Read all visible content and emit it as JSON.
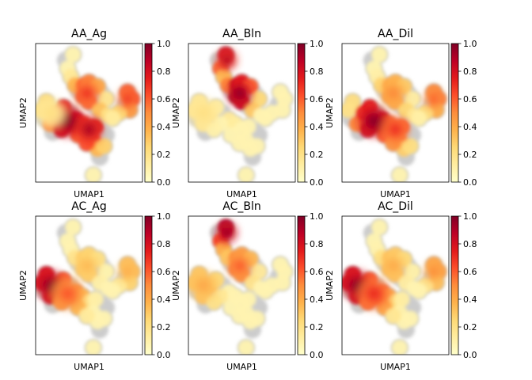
{
  "chart_data": {
    "type": "scatter",
    "colormap": "YlOrRd",
    "background_points_color": "#cccccc",
    "colorbar_ticks": [
      "0.0",
      "0.2",
      "0.4",
      "0.6",
      "0.8",
      "1.0"
    ],
    "colorbar_range": [
      0,
      1
    ],
    "panels": [
      {
        "title": "AA_Ag",
        "xlabel": "UMAP1",
        "ylabel": "UMAP2",
        "hotspots": [
          {
            "region": "left-center cluster",
            "value": 1.0
          },
          {
            "region": "lower-center cluster",
            "value": 0.9
          },
          {
            "region": "upper-center cluster",
            "value": 0.7
          },
          {
            "region": "right cluster",
            "value": 0.7
          },
          {
            "region": "left cluster",
            "value": 0.2
          }
        ]
      },
      {
        "title": "AA_Bln",
        "xlabel": "UMAP1",
        "ylabel": "UMAP2",
        "hotspots": [
          {
            "region": "upper-center cluster",
            "value": 1.0
          },
          {
            "region": "top cluster",
            "value": 0.9
          },
          {
            "region": "left cluster",
            "value": 0.2
          }
        ]
      },
      {
        "title": "AA_Dil",
        "xlabel": "UMAP1",
        "ylabel": "UMAP2",
        "hotspots": [
          {
            "region": "left-center cluster",
            "value": 1.0
          },
          {
            "region": "lower-center cluster",
            "value": 0.7
          },
          {
            "region": "right cluster",
            "value": 0.6
          },
          {
            "region": "upper-center cluster",
            "value": 0.5
          }
        ]
      },
      {
        "title": "AC_Ag",
        "xlabel": "UMAP1",
        "ylabel": "UMAP2",
        "hotspots": [
          {
            "region": "left cluster",
            "value": 1.0
          },
          {
            "region": "left-center cluster",
            "value": 0.6
          },
          {
            "region": "right cluster",
            "value": 0.4
          },
          {
            "region": "upper-center cluster",
            "value": 0.35
          }
        ]
      },
      {
        "title": "AC_Bln",
        "xlabel": "UMAP1",
        "ylabel": "UMAP2",
        "hotspots": [
          {
            "region": "top cluster",
            "value": 1.0
          },
          {
            "region": "upper-center cluster",
            "value": 0.6
          },
          {
            "region": "left cluster",
            "value": 0.4
          }
        ]
      },
      {
        "title": "AC_Dil",
        "xlabel": "UMAP1",
        "ylabel": "UMAP2",
        "hotspots": [
          {
            "region": "left cluster",
            "value": 1.0
          },
          {
            "region": "left-center cluster",
            "value": 0.7
          },
          {
            "region": "right cluster",
            "value": 0.5
          },
          {
            "region": "upper-center cluster",
            "value": 0.4
          }
        ]
      }
    ]
  }
}
